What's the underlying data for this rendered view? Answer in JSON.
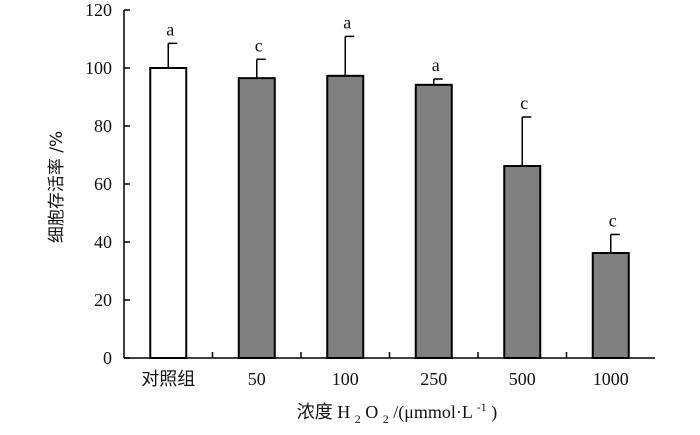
{
  "chart_data": {
    "type": "bar",
    "categories": [
      "对照组",
      "50",
      "100",
      "250",
      "500",
      "1000"
    ],
    "values": [
      100,
      96.5,
      97.3,
      94.2,
      66.2,
      36.2
    ],
    "errors": [
      8.5,
      6.5,
      13.6,
      2.0,
      16.9,
      6.4
    ],
    "significance": [
      "a",
      "c",
      "a",
      "a",
      "c",
      "c"
    ],
    "bar_fill": [
      "#ffffff",
      "#808080",
      "#808080",
      "#808080",
      "#808080",
      "#808080"
    ],
    "bar_stroke": "#000000",
    "ylim": [
      0,
      120
    ],
    "yticks": [
      0,
      20,
      40,
      60,
      80,
      100,
      120
    ],
    "ylabel": "细胞存活率 /%",
    "xlabel": {
      "prefix": "浓度 ",
      "chem_main": "H",
      "chem_sub1": "2",
      "chem_mid": "O",
      "chem_sub2": "2",
      "unit_open": "/(μmmol·L",
      "unit_sup": "-1",
      "unit_close": ")"
    },
    "grid": false,
    "legend": "none"
  }
}
